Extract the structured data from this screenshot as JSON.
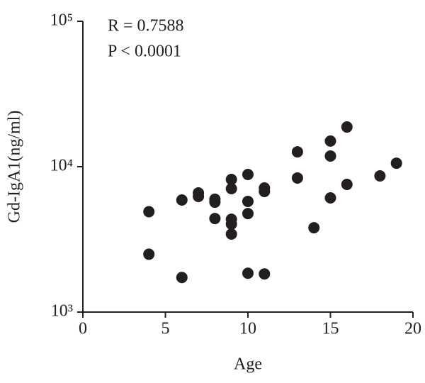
{
  "chart_data": {
    "type": "scatter",
    "x_label": "Age",
    "y_label": "Gd-IgA1(ng/ml)",
    "annotations": [
      "R = 0.7588",
      "P < 0.0001"
    ],
    "log_y": true,
    "color": "#231f20",
    "xlim": [
      0,
      20
    ],
    "xticks": [
      0,
      5,
      10,
      15,
      20
    ],
    "ylim": [
      1000,
      100000
    ],
    "yticks": [
      {
        "value": 1000,
        "label": "10³"
      },
      {
        "value": 10000,
        "label": "10⁴"
      },
      {
        "value": 100000,
        "label": "10⁵"
      }
    ],
    "x": [
      4,
      4,
      6,
      6,
      7,
      7,
      8,
      8,
      8,
      9,
      9,
      9,
      9,
      9,
      10,
      10,
      10,
      10,
      11,
      11,
      11,
      13,
      13,
      14,
      15,
      15,
      15,
      16,
      16,
      18,
      19
    ],
    "values": [
      4900,
      2500,
      5900,
      1730,
      6600,
      6240,
      5970,
      5700,
      4400,
      8170,
      7060,
      4350,
      4030,
      3440,
      8840,
      5770,
      4760,
      1850,
      7140,
      6750,
      1830,
      12650,
      8360,
      3800,
      15000,
      11840,
      6100,
      18750,
      7550,
      8640,
      10570
    ]
  }
}
